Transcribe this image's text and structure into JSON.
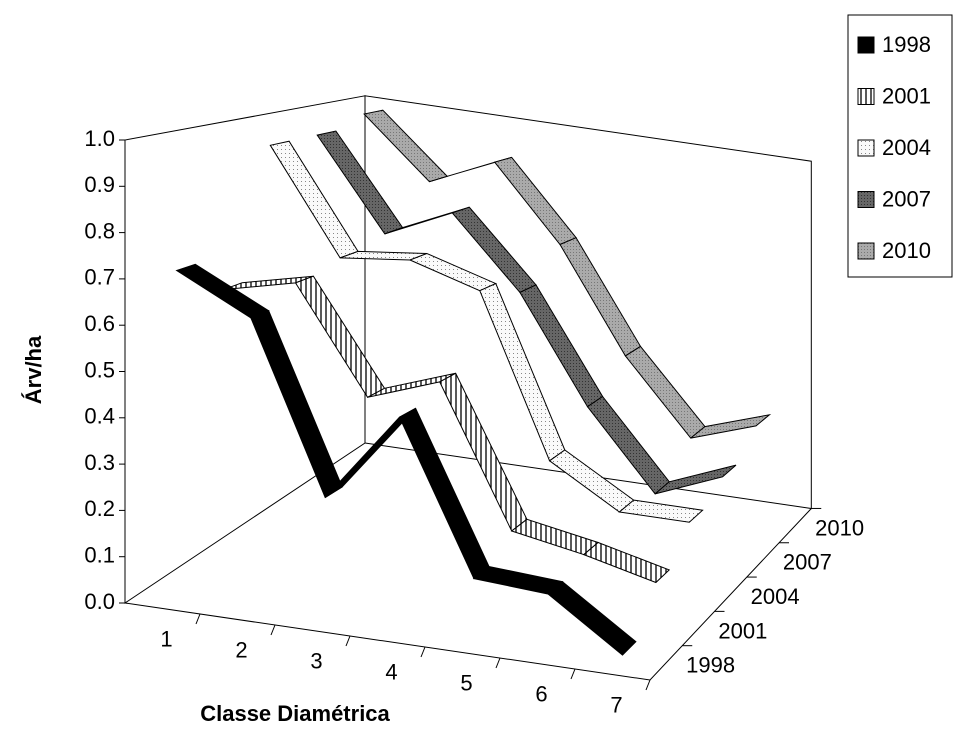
{
  "chart_data": {
    "type": "ribbon3d",
    "x_label": "Classe Diamétrica",
    "y_label": "Árv/ha",
    "categories": [
      "1",
      "2",
      "3",
      "4",
      "5",
      "6",
      "7"
    ],
    "series": [
      {
        "name": "1998",
        "color": "#000000",
        "values": [
          0.72,
          0.64,
          0.27,
          0.47,
          0.14,
          0.13,
          0.02
        ]
      },
      {
        "name": "2001",
        "color": "#d8d8d8",
        "values": [
          0.64,
          0.68,
          0.44,
          0.5,
          0.18,
          0.15,
          0.11
        ]
      },
      {
        "name": "2004",
        "color": "#f4f4f4",
        "values": [
          0.95,
          0.7,
          0.72,
          0.67,
          0.28,
          0.18,
          0.18
        ]
      },
      {
        "name": "2007",
        "color": "#6e6e6e",
        "values": [
          0.95,
          0.72,
          0.8,
          0.62,
          0.35,
          0.15,
          0.22
        ]
      },
      {
        "name": "2010",
        "color": "#a6a6a6",
        "values": [
          0.98,
          0.82,
          0.9,
          0.7,
          0.42,
          0.22,
          0.28
        ]
      }
    ],
    "ylim": [
      0,
      1
    ],
    "yticks": [
      {
        "value": 0,
        "label": "0.0"
      },
      0.1,
      0.2,
      0.3,
      0.4,
      0.5,
      0.6,
      0.7,
      0.8,
      0.9,
      {
        "value": 1,
        "label": "1.0"
      }
    ]
  }
}
